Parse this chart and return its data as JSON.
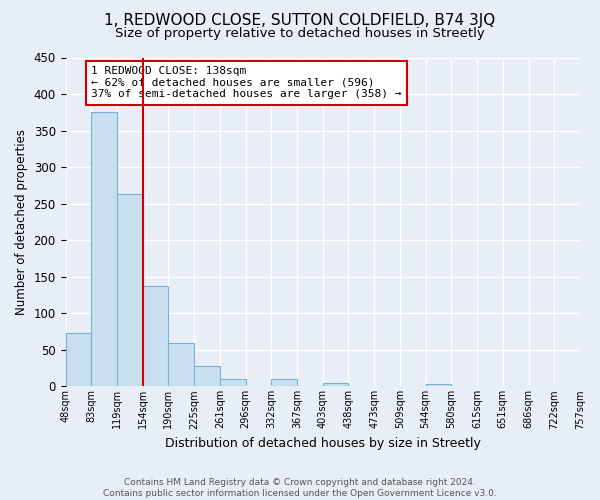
{
  "title": "1, REDWOOD CLOSE, SUTTON COLDFIELD, B74 3JQ",
  "subtitle": "Size of property relative to detached houses in Streetly",
  "xlabel": "Distribution of detached houses by size in Streetly",
  "ylabel": "Number of detached properties",
  "footer_lines": [
    "Contains HM Land Registry data © Crown copyright and database right 2024.",
    "Contains public sector information licensed under the Open Government Licence v3.0."
  ],
  "bin_labels": [
    "48sqm",
    "83sqm",
    "119sqm",
    "154sqm",
    "190sqm",
    "225sqm",
    "261sqm",
    "296sqm",
    "332sqm",
    "367sqm",
    "403sqm",
    "438sqm",
    "473sqm",
    "509sqm",
    "544sqm",
    "580sqm",
    "615sqm",
    "651sqm",
    "686sqm",
    "722sqm",
    "757sqm"
  ],
  "bar_heights": [
    73,
    375,
    263,
    138,
    60,
    28,
    10,
    0,
    10,
    0,
    5,
    0,
    0,
    0,
    3,
    0,
    0,
    0,
    0,
    0,
    3
  ],
  "bar_color": "#c8dff0",
  "bar_edge_color": "#7ab0d4",
  "annotation_text": "1 REDWOOD CLOSE: 138sqm\n← 62% of detached houses are smaller (596)\n37% of semi-detached houses are larger (358) →",
  "annotation_box_edgecolor": "#cc0000",
  "annotation_box_facecolor": "#ffffff",
  "redline_color": "#cc0000",
  "ylim": [
    0,
    450
  ],
  "yticks": [
    0,
    50,
    100,
    150,
    200,
    250,
    300,
    350,
    400,
    450
  ],
  "background_color": "#e8eef5",
  "plot_background": "#e8eef5",
  "grid_color": "#ffffff",
  "title_fontsize": 11,
  "subtitle_fontsize": 9.5
}
